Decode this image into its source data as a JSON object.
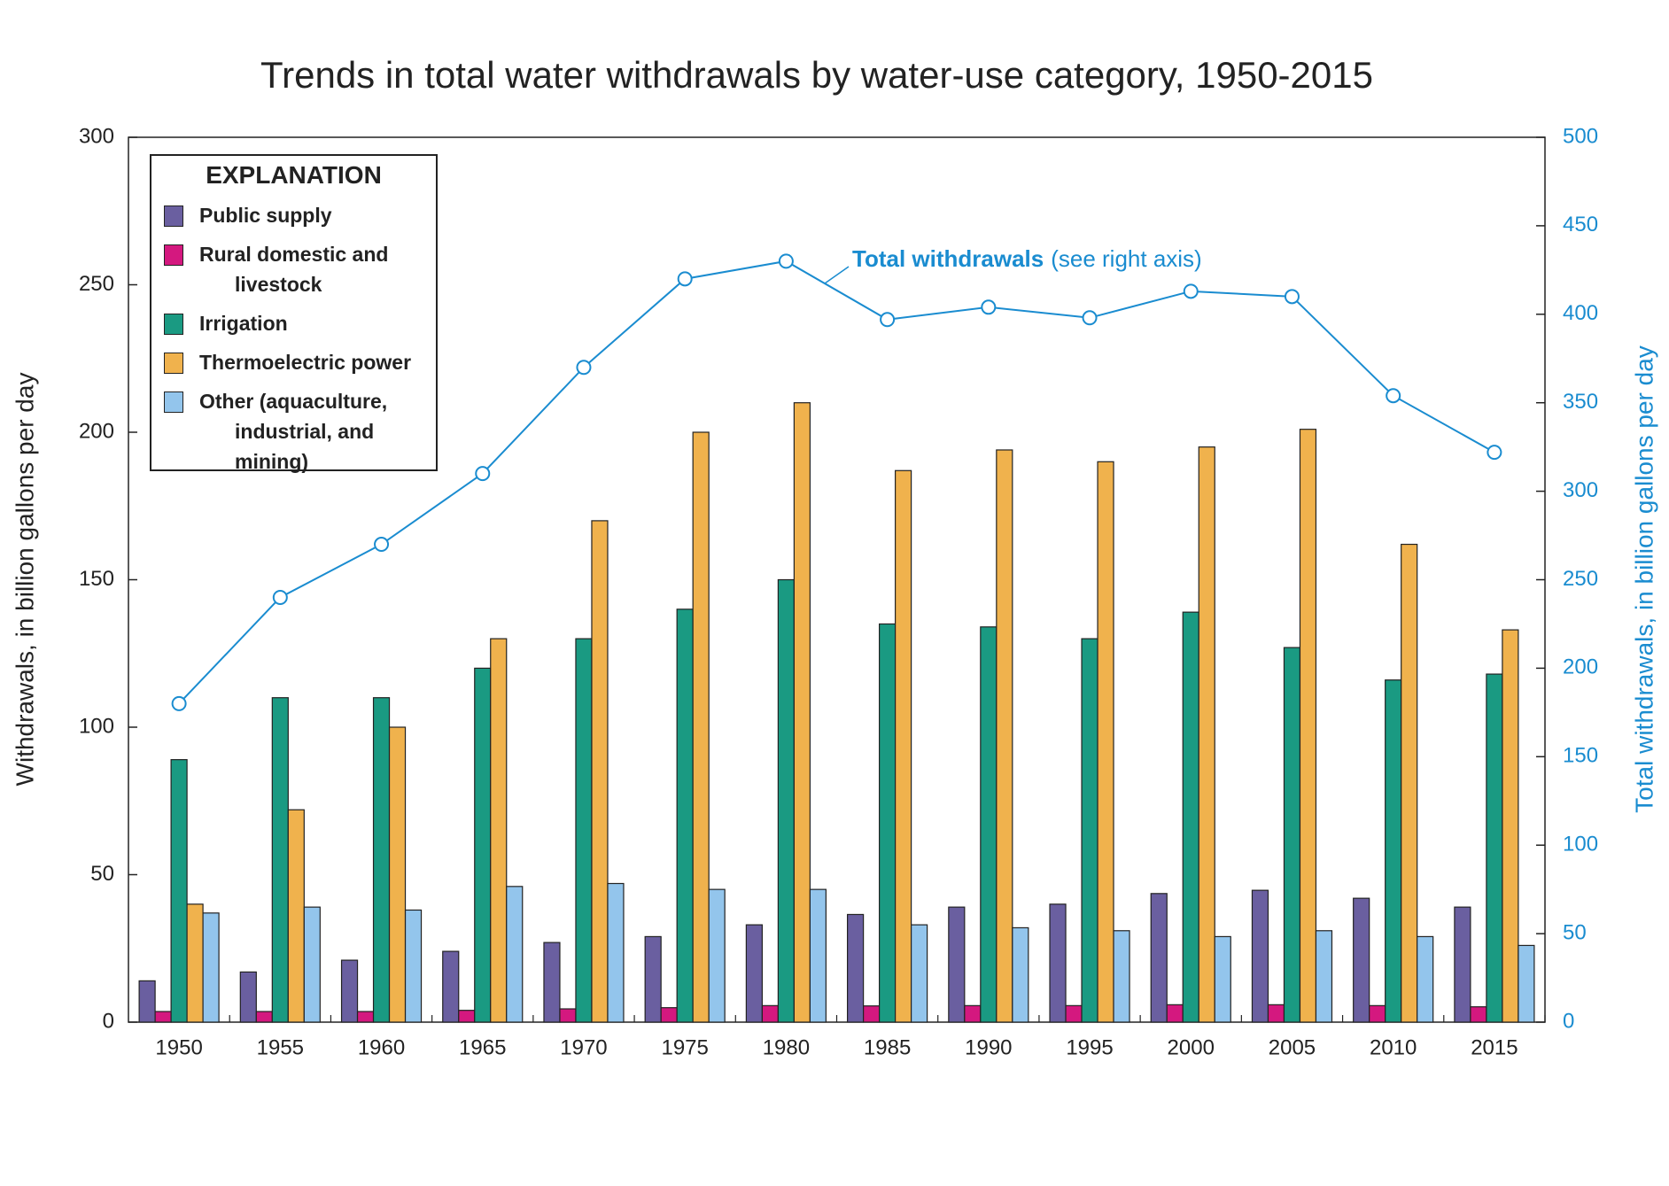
{
  "chart_data": {
    "type": "bar",
    "title": "Trends in total water withdrawals by water-use category, 1950-2015",
    "y_label": "Withdrawals, in billion gallons per day",
    "y2_label": "Total withdrawals, in billion gallons per day",
    "legend_title": "EXPLANATION",
    "legend_position": "top-left",
    "annotation": "(see right axis)",
    "categories": [
      "1950",
      "1955",
      "1960",
      "1965",
      "1970",
      "1975",
      "1980",
      "1985",
      "1990",
      "1995",
      "2000",
      "2005",
      "2010",
      "2015"
    ],
    "ylim": [
      0,
      300
    ],
    "yticks": [
      0,
      50,
      100,
      150,
      200,
      250,
      300
    ],
    "y2lim": [
      0,
      500
    ],
    "y2ticks": [
      0,
      50,
      100,
      150,
      200,
      250,
      300,
      350,
      400,
      450,
      500
    ],
    "y2_color": "#1a8cd0",
    "series": [
      {
        "name": "Public supply",
        "color": "#6a5fa0",
        "values": [
          14,
          17,
          21,
          24,
          27,
          29,
          33,
          36.5,
          39,
          40,
          43.6,
          44.7,
          42,
          39
        ]
      },
      {
        "name": "Rural domestic and livestock",
        "color": "#d4187f",
        "values": [
          3.6,
          3.6,
          3.6,
          4,
          4.5,
          4.9,
          5.6,
          5.5,
          5.6,
          5.6,
          5.9,
          5.9,
          5.6,
          5.2
        ]
      },
      {
        "name": "Irrigation",
        "color": "#1a9a82",
        "values": [
          89,
          110,
          110,
          120,
          130,
          140,
          150,
          135,
          134,
          130,
          139,
          127,
          116,
          118
        ]
      },
      {
        "name": "Thermoelectric power",
        "color": "#f0b24d",
        "values": [
          40,
          72,
          100,
          130,
          170,
          200,
          210,
          187,
          194,
          190,
          195,
          201,
          162,
          133
        ]
      },
      {
        "name": "Other (aquaculture, industrial, and mining)",
        "color": "#93c5ec",
        "values": [
          37,
          39,
          38,
          46,
          47,
          45,
          45,
          33,
          32,
          31,
          29,
          31,
          29,
          26
        ]
      },
      {
        "name": "Total withdrawals",
        "type": "line",
        "axis": "y2",
        "color": "#1a8cd0",
        "values": [
          180,
          240,
          270,
          310,
          370,
          420,
          430,
          397,
          404,
          398,
          413,
          410,
          354,
          322
        ]
      }
    ]
  }
}
